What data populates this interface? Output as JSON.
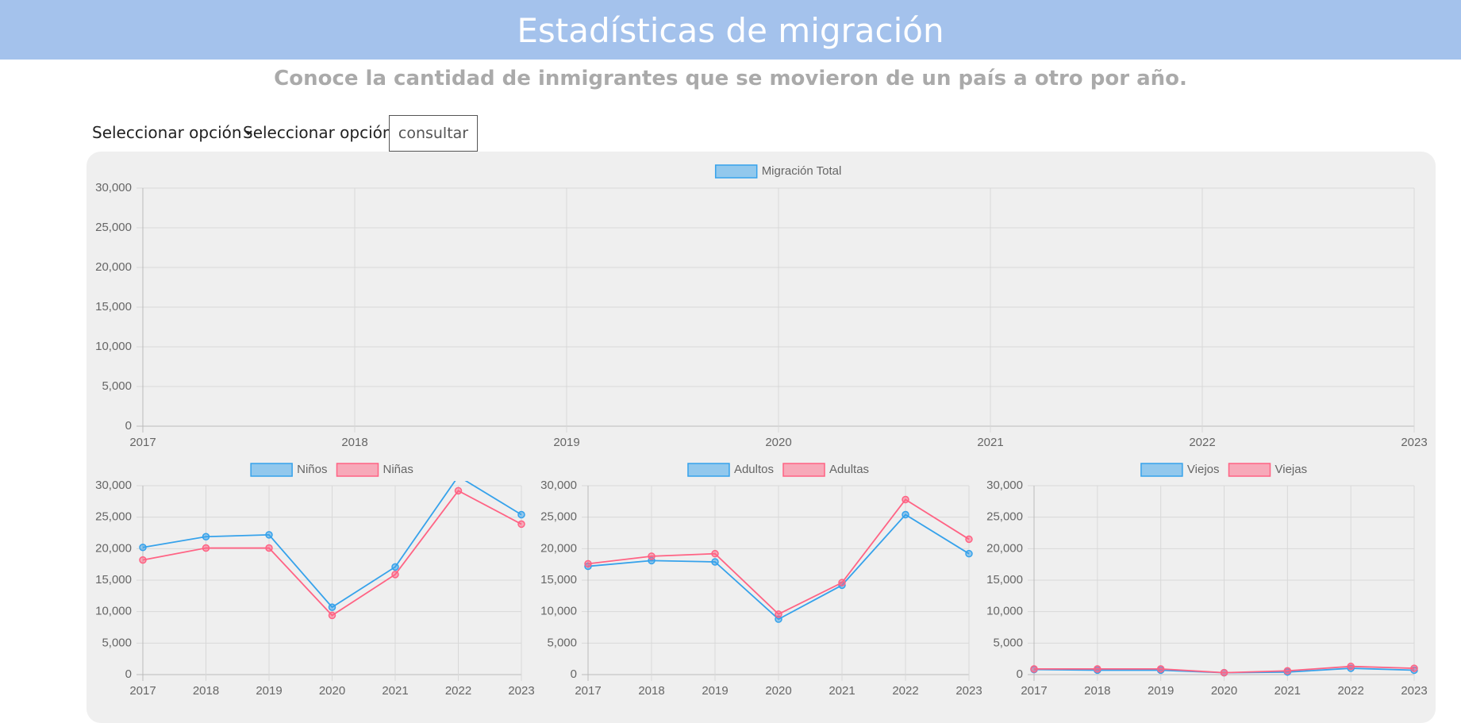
{
  "header": {
    "title": "Estadísticas de migración"
  },
  "subtitle": "Conoce la cantidad de inmigrantes que se movieron de un país a otro por año.",
  "controls": {
    "select_1": "Seleccionar opción",
    "select_2": "Seleccionar opción",
    "button": "consultar"
  },
  "chart_data": [
    {
      "type": "line",
      "categories": [
        "2017",
        "2018",
        "2019",
        "2020",
        "2021",
        "2022",
        "2023"
      ],
      "series": [
        {
          "name": "Migración Total",
          "color": "#36a2eb",
          "values": [
            null,
            null,
            null,
            null,
            null,
            null,
            null
          ]
        }
      ],
      "ylim": [
        0,
        30000
      ],
      "yticks": [
        0,
        {
          "value": 5000,
          "label": "5,000"
        },
        {
          "value": 10000,
          "label": "10,000"
        },
        {
          "value": 15000,
          "label": "15,000"
        },
        {
          "value": 20000,
          "label": "20,000"
        },
        {
          "value": 25000,
          "label": "25,000"
        },
        {
          "value": 30000,
          "label": "30,000"
        }
      ],
      "grid": true
    },
    {
      "type": "line",
      "categories": [
        "2017",
        "2018",
        "2019",
        "2020",
        "2021",
        "2022",
        "2023"
      ],
      "series": [
        {
          "name": "Niños",
          "color": "#36a2eb",
          "values": [
            20200,
            21900,
            22200,
            10700,
            17100,
            31500,
            25400
          ]
        },
        {
          "name": "Niñas",
          "color": "#ff6384",
          "values": [
            18200,
            20100,
            20100,
            9400,
            15900,
            29200,
            23900
          ]
        }
      ],
      "ylim": [
        0,
        30000
      ],
      "yticks": [
        0,
        {
          "value": 5000,
          "label": "5,000"
        },
        {
          "value": 10000,
          "label": "10,000"
        },
        {
          "value": 15000,
          "label": "15,000"
        },
        {
          "value": 20000,
          "label": "20,000"
        },
        {
          "value": 25000,
          "label": "25,000"
        },
        {
          "value": 30000,
          "label": "30,000"
        }
      ],
      "grid": true
    },
    {
      "type": "line",
      "categories": [
        "2017",
        "2018",
        "2019",
        "2020",
        "2021",
        "2022",
        "2023"
      ],
      "series": [
        {
          "name": "Adultos",
          "color": "#36a2eb",
          "values": [
            17200,
            18100,
            17900,
            8800,
            14200,
            25400,
            19200
          ]
        },
        {
          "name": "Adultas",
          "color": "#ff6384",
          "values": [
            17600,
            18800,
            19200,
            9600,
            14600,
            27800,
            21500
          ]
        }
      ],
      "ylim": [
        0,
        30000
      ],
      "yticks": [
        0,
        {
          "value": 5000,
          "label": "5,000"
        },
        {
          "value": 10000,
          "label": "10,000"
        },
        {
          "value": 15000,
          "label": "15,000"
        },
        {
          "value": 20000,
          "label": "20,000"
        },
        {
          "value": 25000,
          "label": "25,000"
        },
        {
          "value": 30000,
          "label": "30,000"
        }
      ],
      "grid": true
    },
    {
      "type": "line",
      "categories": [
        "2017",
        "2018",
        "2019",
        "2020",
        "2021",
        "2022",
        "2023"
      ],
      "series": [
        {
          "name": "Viejos",
          "color": "#36a2eb",
          "values": [
            800,
            700,
            700,
            300,
            400,
            1000,
            700
          ]
        },
        {
          "name": "Viejas",
          "color": "#ff6384",
          "values": [
            900,
            900,
            900,
            300,
            600,
            1300,
            1000
          ]
        }
      ],
      "ylim": [
        0,
        30000
      ],
      "yticks": [
        0,
        {
          "value": 5000,
          "label": "5,000"
        },
        {
          "value": 10000,
          "label": "10,000"
        },
        {
          "value": 15000,
          "label": "15,000"
        },
        {
          "value": 20000,
          "label": "20,000"
        },
        {
          "value": 25000,
          "label": "25,000"
        },
        {
          "value": 30000,
          "label": "30,000"
        }
      ],
      "grid": true
    }
  ]
}
